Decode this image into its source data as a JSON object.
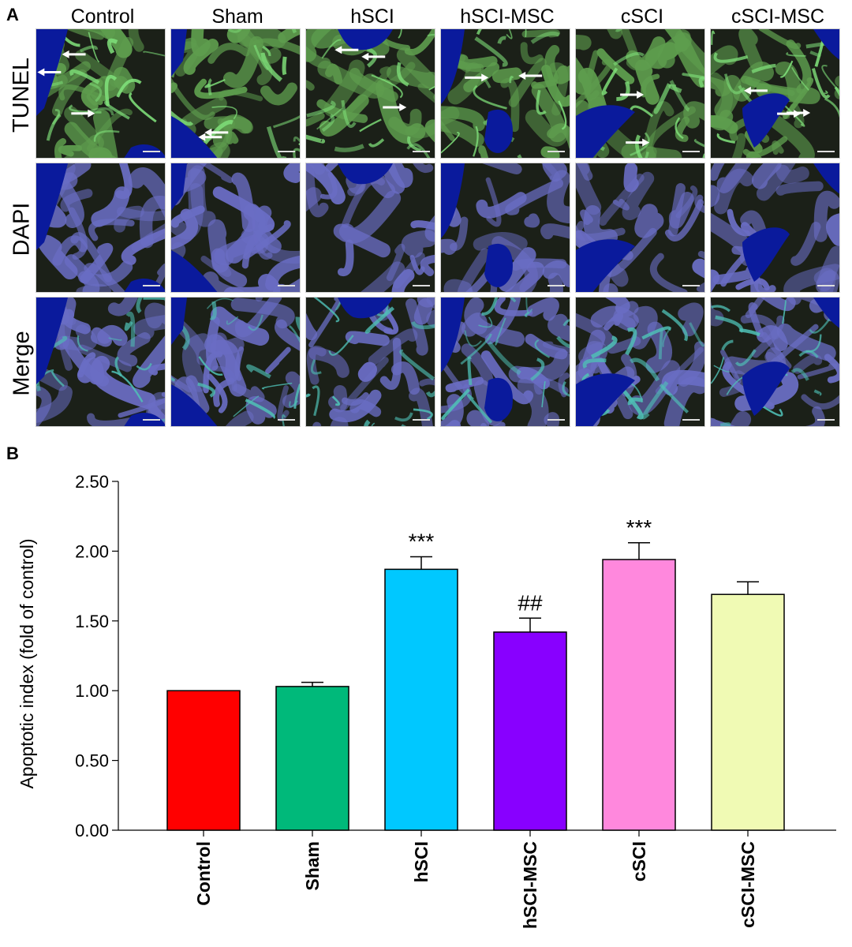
{
  "panel_a": {
    "letter": "A",
    "columns": [
      "Control",
      "Sham",
      "hSCI",
      "hSCI-MSC",
      "cSCI",
      "cSCI-MSC"
    ],
    "rows": [
      "TUNEL",
      "DAPI",
      "Merge"
    ],
    "colors": {
      "tunel_tissue": "#5e9d4e",
      "tunel_bright": "#7fe07a",
      "dapi_tissue": "#6a6dc4",
      "merge_cyan": "#4fc0b6",
      "lumen_blue": "#0a1a9c",
      "background_dark": "#1b2018"
    },
    "icons": [
      "arrow-icon"
    ]
  },
  "panel_b": {
    "letter": "B",
    "chart_data": {
      "type": "bar",
      "categories": [
        "Control",
        "Sham",
        "hSCI",
        "hSCI-MSC",
        "cSCI",
        "cSCI-MSC"
      ],
      "values": [
        1.0,
        1.03,
        1.87,
        1.42,
        1.94,
        1.69
      ],
      "errors": [
        0.0,
        0.03,
        0.09,
        0.1,
        0.12,
        0.09
      ],
      "annotations": [
        "",
        "",
        "***",
        "##",
        "***",
        ""
      ],
      "colors": [
        "#ff0000",
        "#00b97a",
        "#00c8ff",
        "#8800ff",
        "#ff88dd",
        "#f0fab4"
      ],
      "ylabel": "Apoptotic index (fold of control)",
      "yticks": [
        "0.00",
        "0.50",
        "1.00",
        "1.50",
        "2.00",
        "2.50"
      ],
      "ylim": [
        0,
        2.5
      ],
      "grid": false
    }
  }
}
